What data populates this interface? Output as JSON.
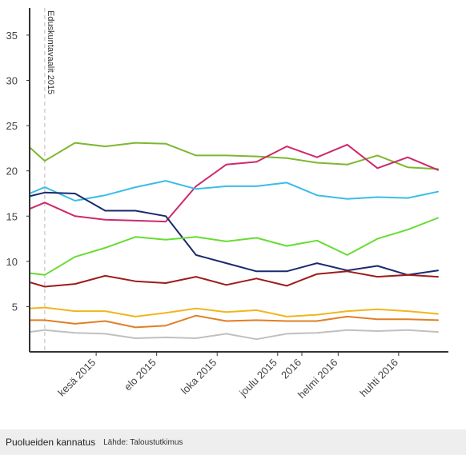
{
  "footer": {
    "title": "Puolueiden kannatus",
    "source": "Lähde: Taloustutkimus"
  },
  "chart_data": {
    "type": "line",
    "title": "",
    "xlabel": "",
    "ylabel": "",
    "ylim": [
      0,
      38
    ],
    "y_ticks": [
      5,
      10,
      15,
      20,
      25,
      30,
      35
    ],
    "x_tick_labels": [
      "kesä 2015",
      "elo 2015",
      "loka 2015",
      "joulu 2015",
      "2016",
      "helmi 2016",
      "huhti 2016"
    ],
    "x_tick_positions": [
      2.2,
      4.2,
      6.2,
      8.2,
      9.0,
      10.2,
      12.2
    ],
    "x": [
      0,
      0.5,
      1.5,
      2.5,
      3.5,
      4.5,
      5.5,
      6.5,
      7.5,
      8.5,
      9.5,
      10.5,
      11.5,
      12.5,
      13.5
    ],
    "grid": false,
    "legend": "none",
    "annotations": [
      {
        "text": "Eduskuntavaalit 2015",
        "x": 0.5
      }
    ],
    "series": [
      {
        "color": "#7cb82f",
        "values": [
          22.6,
          21.1,
          23.1,
          22.7,
          23.1,
          23.0,
          21.7,
          21.7,
          21.6,
          21.4,
          20.9,
          20.7,
          21.7,
          20.4,
          20.2
        ]
      },
      {
        "color": "#cc2a6b",
        "values": [
          15.8,
          16.5,
          15.0,
          14.6,
          14.5,
          14.4,
          18.3,
          20.7,
          21.0,
          22.7,
          21.5,
          22.9,
          20.3,
          21.5,
          20.1
        ]
      },
      {
        "color": "#3bbde8",
        "values": [
          17.5,
          18.2,
          16.7,
          17.3,
          18.2,
          18.9,
          18.0,
          18.3,
          18.3,
          18.7,
          17.3,
          16.9,
          17.1,
          17.0,
          17.7
        ]
      },
      {
        "color": "#1b2a6e",
        "values": [
          17.2,
          17.6,
          17.5,
          15.6,
          15.6,
          15.0,
          10.7,
          9.8,
          8.9,
          8.9,
          9.8,
          9.0,
          9.5,
          8.5,
          9.0
        ]
      },
      {
        "color": "#66dd33",
        "values": [
          8.7,
          8.5,
          10.5,
          11.5,
          12.7,
          12.4,
          12.7,
          12.2,
          12.6,
          11.7,
          12.3,
          10.7,
          12.5,
          13.5,
          14.8
        ]
      },
      {
        "color": "#9e1b1b",
        "values": [
          7.7,
          7.2,
          7.5,
          8.4,
          7.8,
          7.6,
          8.3,
          7.4,
          8.1,
          7.3,
          8.6,
          8.9,
          8.3,
          8.5,
          8.3
        ]
      },
      {
        "color": "#f2b51e",
        "values": [
          4.8,
          4.9,
          4.5,
          4.5,
          3.9,
          4.3,
          4.8,
          4.4,
          4.6,
          3.9,
          4.1,
          4.5,
          4.7,
          4.5,
          4.2
        ]
      },
      {
        "color": "#e07f26",
        "values": [
          3.5,
          3.5,
          3.1,
          3.4,
          2.7,
          2.9,
          4.0,
          3.4,
          3.5,
          3.4,
          3.4,
          3.9,
          3.6,
          3.6,
          3.5
        ]
      },
      {
        "color": "#c0c0c0",
        "values": [
          2.2,
          2.4,
          2.1,
          2.0,
          1.5,
          1.6,
          1.5,
          2.0,
          1.4,
          2.0,
          2.1,
          2.4,
          2.3,
          2.4,
          2.2
        ]
      }
    ]
  }
}
